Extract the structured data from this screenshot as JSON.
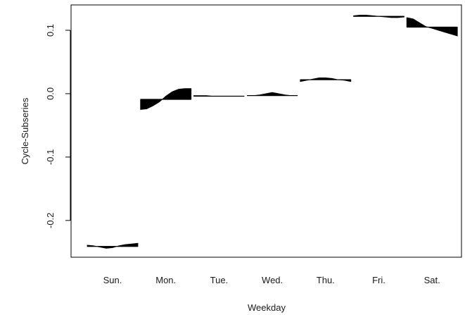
{
  "chart_data": {
    "type": "area",
    "title": "",
    "xlabel": "Weekday",
    "ylabel": "Cycle-Subseries",
    "categories": [
      "Sun.",
      "Mon.",
      "Tue.",
      "Wed.",
      "Thu.",
      "Fri.",
      "Sat."
    ],
    "ylim": [
      -0.258,
      0.14
    ],
    "yticks": [
      -0.2,
      -0.1,
      0.0,
      0.1
    ],
    "ytick_labels": [
      "-0.2",
      "-0.1",
      "0.0",
      "0.1"
    ],
    "grid": false,
    "legend": "none",
    "fill_color": "#000000",
    "subseries": [
      {
        "category": "Sun.",
        "mean": -0.241,
        "values": [
          -0.239,
          -0.24,
          -0.242,
          -0.244,
          -0.243,
          -0.24,
          -0.238,
          -0.237,
          -0.236
        ]
      },
      {
        "category": "Mon.",
        "mean": -0.009,
        "values": [
          -0.025,
          -0.024,
          -0.019,
          -0.013,
          -0.004,
          0.003,
          0.007,
          0.008,
          0.008
        ]
      },
      {
        "category": "Tue.",
        "mean": -0.004,
        "values": [
          -0.003,
          -0.003,
          -0.003,
          -0.004,
          -0.004,
          -0.004,
          -0.004,
          -0.004,
          -0.004
        ]
      },
      {
        "category": "Wed.",
        "mean": -0.003,
        "values": [
          -0.003,
          -0.003,
          -0.002,
          0.0,
          0.002,
          0.0,
          -0.002,
          -0.003,
          -0.003
        ]
      },
      {
        "category": "Thu.",
        "mean": 0.022,
        "values": [
          0.019,
          0.021,
          0.023,
          0.025,
          0.025,
          0.024,
          0.022,
          0.021,
          0.019
        ]
      },
      {
        "category": "Fri.",
        "mean": 0.122,
        "values": [
          0.123,
          0.124,
          0.124,
          0.123,
          0.122,
          0.121,
          0.12,
          0.12,
          0.121
        ]
      },
      {
        "category": "Sat.",
        "mean": 0.105,
        "values": [
          0.12,
          0.118,
          0.112,
          0.106,
          0.103,
          0.1,
          0.097,
          0.094,
          0.091
        ]
      }
    ]
  }
}
